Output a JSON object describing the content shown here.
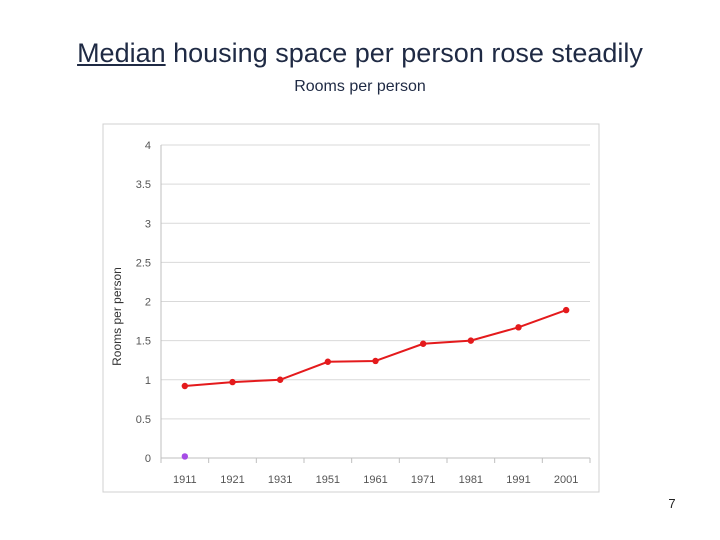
{
  "title_underlined": "Median",
  "title_rest": " housing space per person rose steadily",
  "page_number": "7",
  "chart_data": {
    "type": "line",
    "subtitle": "Rooms per person",
    "ylabel": "Rooms per person",
    "xlabel": "",
    "categories": [
      "1911",
      "1921",
      "1931",
      "1951",
      "1961",
      "1971",
      "1981",
      "1991",
      "2001"
    ],
    "series": [
      {
        "values": [
          0.92,
          0.97,
          1.0,
          1.23,
          1.24,
          1.46,
          1.5,
          1.67,
          1.89
        ],
        "color": "#e41a1c"
      },
      {
        "values": [
          0.02,
          null,
          null,
          null,
          null,
          null,
          null,
          null,
          null
        ],
        "color": "#a64ce6"
      }
    ],
    "ylim": [
      0,
      4
    ],
    "yticks": [
      "0",
      "0.5",
      "1",
      "1.5",
      "2",
      "2.5",
      "3",
      "3.5",
      "4"
    ],
    "grid": true,
    "legend": "none"
  }
}
